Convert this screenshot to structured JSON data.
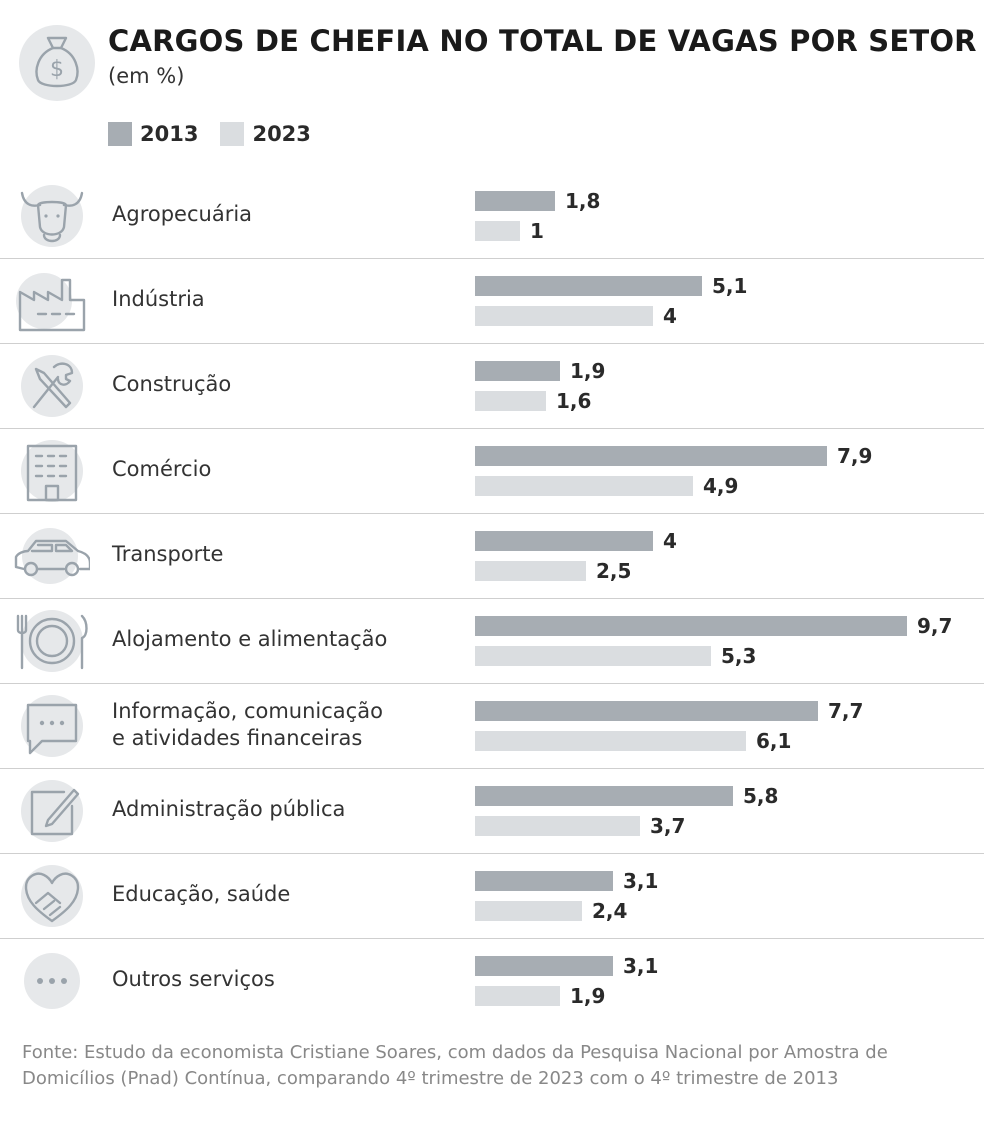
{
  "header": {
    "title": "CARGOS DE CHEFIA NO TOTAL DE VAGAS POR SETOR",
    "subtitle": "(em %)",
    "icon": "money-bag-icon"
  },
  "colors": {
    "series_2013": "#a7adb3",
    "series_2023": "#dadde0",
    "icon_circle": "#e6e8ea",
    "icon_stroke": "#9aa3ab"
  },
  "chart_data": {
    "type": "bar",
    "orientation": "horizontal",
    "title": "CARGOS DE CHEFIA NO TOTAL DE VAGAS POR SETOR",
    "subtitle": "(em %)",
    "xlabel": "",
    "ylabel": "",
    "xlim": [
      0,
      10
    ],
    "legend": "top-left",
    "categories": [
      "Agropecuária",
      "Indústria",
      "Construção",
      "Comércio",
      "Transporte",
      "Alojamento e alimentação",
      "Informação, comunicação e atividades financeiras",
      "Administração pública",
      "Educação, saúde",
      "Outros serviços"
    ],
    "category_lines": [
      [
        "Agropecuária"
      ],
      [
        "Indústria"
      ],
      [
        "Construção"
      ],
      [
        "Comércio"
      ],
      [
        "Transporte"
      ],
      [
        "Alojamento e alimentação"
      ],
      [
        "Informação, comunicação",
        "e atividades financeiras"
      ],
      [
        "Administração pública"
      ],
      [
        "Educação, saúde"
      ],
      [
        "Outros serviços"
      ]
    ],
    "icons": [
      "bull-icon",
      "factory-icon",
      "wrench-screwdriver-icon",
      "building-icon",
      "car-icon",
      "plate-cutlery-icon",
      "chat-bubble-icon",
      "pencil-note-icon",
      "heart-handshake-icon",
      "ellipsis-icon"
    ],
    "series": [
      {
        "name": "2013",
        "values": [
          1.8,
          5.1,
          1.9,
          7.9,
          4,
          9.7,
          7.7,
          5.8,
          3.1,
          3.1
        ],
        "labels": [
          "1,8",
          "5,1",
          "1,9",
          "7,9",
          "4",
          "9,7",
          "7,7",
          "5,8",
          "3,1",
          "3,1"
        ]
      },
      {
        "name": "2023",
        "values": [
          1,
          4,
          1.6,
          4.9,
          2.5,
          5.3,
          6.1,
          3.7,
          2.4,
          1.9
        ],
        "labels": [
          "1",
          "4",
          "1,6",
          "4,9",
          "2,5",
          "5,3",
          "6,1",
          "3,7",
          "2,4",
          "1,9"
        ]
      }
    ]
  },
  "footer": {
    "source": "Fonte: Estudo da economista Cristiane Soares, com dados da Pesquisa Nacional por Amostra de Domicílios (Pnad) Contínua, comparando 4º trimestre de 2023 com o 4º trimestre de 2013"
  }
}
